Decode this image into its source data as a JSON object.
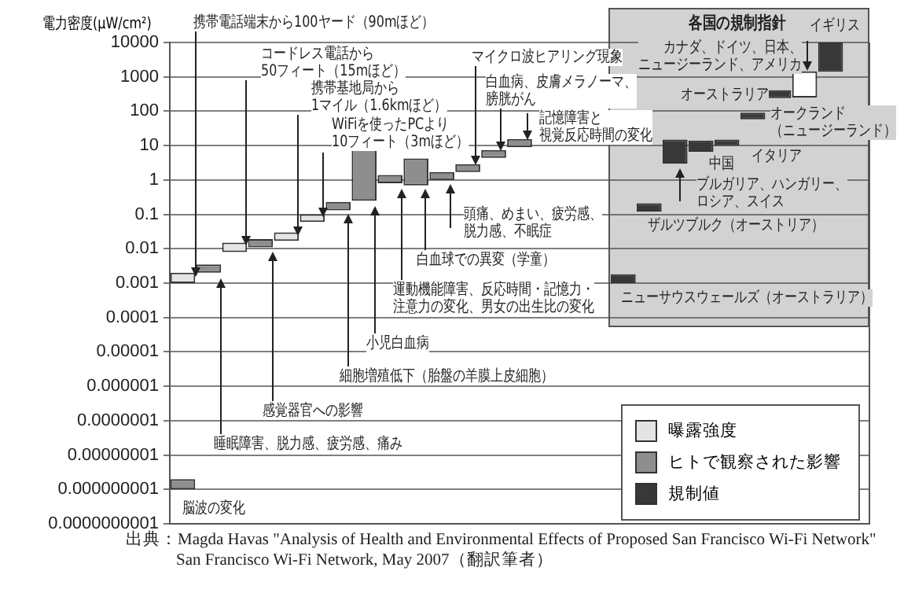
{
  "chart_data": {
    "type": "bar",
    "ylabel": "電力密度(μW/cm²)",
    "categories": [
      null,
      null,
      null,
      null,
      null,
      null,
      null,
      null,
      null,
      null,
      null,
      null,
      null,
      null,
      null,
      null,
      null,
      null,
      null,
      null,
      null,
      null,
      null,
      null,
      null,
      null,
      null
    ],
    "series": [
      {
        "name": "曝露強度",
        "color": "#e4e4e4",
        "values": [
          0.001,
          null,
          0.007,
          null,
          0.013,
          0.04,
          null,
          null,
          null,
          null,
          null,
          null,
          null,
          null,
          null,
          null,
          null,
          null,
          null,
          null,
          null,
          null,
          null,
          null,
          null,
          null,
          null
        ],
        "base": [
          0.001,
          null,
          0.008,
          null,
          0.017,
          0.06,
          null,
          null,
          null,
          null,
          null,
          null,
          null,
          null,
          null,
          null,
          null,
          null,
          null,
          null,
          null,
          null,
          null,
          null,
          null,
          null,
          null
        ]
      },
      {
        "name": "ヒトで観察された影響",
        "color": "#8e8e8e",
        "values": [
          1e-09,
          0.0015,
          null,
          0.008,
          null,
          null,
          0.1,
          7.5,
          0.6,
          3.5,
          0.7,
          1.2,
          3,
          6.5,
          null,
          null,
          null,
          null,
          null,
          null,
          null,
          null,
          null,
          null,
          null,
          null,
          null
        ],
        "base": [
          1e-09,
          0.002,
          null,
          0.011,
          null,
          null,
          0.13,
          0.25,
          0.8,
          0.7,
          1,
          1.7,
          4.4,
          9,
          null,
          null,
          null,
          null,
          null,
          null,
          null,
          null,
          null,
          null,
          null,
          null,
          null
        ]
      },
      {
        "name": "規制値",
        "color": "#383838",
        "colors": [
          null,
          null,
          null,
          null,
          null,
          null,
          null,
          null,
          null,
          null,
          null,
          null,
          null,
          null,
          null,
          null,
          null,
          "#383838",
          "#383838",
          "#383838",
          "#383838",
          "#383838",
          "#383838",
          "#383838",
          "#ffffff",
          "#383838",
          null
        ],
        "values": [
          null,
          null,
          null,
          null,
          null,
          null,
          null,
          null,
          null,
          null,
          null,
          null,
          null,
          null,
          null,
          null,
          null,
          0.0008,
          0.09,
          12,
          7.4,
          5,
          33,
          170,
          1200,
          8600,
          null
        ],
        "base": [
          null,
          null,
          null,
          null,
          null,
          null,
          null,
          null,
          null,
          null,
          null,
          null,
          null,
          null,
          null,
          null,
          null,
          0.001,
          0.12,
          3,
          6.6,
          10,
          58,
          240,
          250,
          1400,
          null
        ]
      }
    ],
    "log": true,
    "ylim": [
      1e-10,
      10000
    ],
    "yticks": [
      {
        "value": 1e-10,
        "label": "0.0000000001"
      },
      {
        "value": 1e-09,
        "label": "0.000000001"
      },
      {
        "value": 1e-08,
        "label": "0.00000001"
      },
      {
        "value": 1e-07,
        "label": "0.0000001"
      },
      {
        "value": 1e-06,
        "label": "0.000001"
      },
      {
        "value": 1e-05,
        "label": "0.00001"
      },
      0.0001,
      0.001,
      0.01,
      0.1,
      1,
      10,
      100,
      1000,
      10000
    ],
    "grid": "y",
    "legend": "bottom right",
    "tick_labels": "y",
    "annotations": [
      "携帯電話端末から100ヤード（90mほど）",
      "コードレス電話から\n50フィート（15mほど）",
      "携帯基地局から\n1マイル（1.6kmほど）",
      "WiFiを使ったPCより\n10フィート（3mほど）",
      "マイクロ波ヒアリング現象",
      "白血病、皮膚メラノーマ、膀胱がん",
      "記憶障害と視覚反応時間の変化",
      "頭痛、めまい、疲労感、脱力感、不眠症",
      "白血球での異変（学童）",
      "運動機能障害、反応時間・記憶力・注意力の変化、男女の出生比の変化",
      "小児白血病",
      "細胞増殖低下（胎盤の羊膜上皮細胞）",
      "感覚器官への影響",
      "睡眠障害、脱力感、疲労感、痛み",
      "脳波の変化",
      "各国の規制指針",
      "イギリス",
      "カナダ、ドイツ、日本、ニュージーランド、アメリカ",
      "オーストラリア",
      "オークランド（ニュージーランド）",
      "イタリア",
      "中国",
      "ブルガリア、ハンガリー、ロシア、スイス",
      "ザルツブルク（オーストリア）",
      "ニューサウスウェールズ（オーストラリア）",
      "出典：Magda Havas \"Analysis of Health and Environmental Effects of Proposed San Francisco Wi-Fi Network\" San Francisco Wi-Fi Network, May 2007（翻訳筆者）"
    ]
  }
}
